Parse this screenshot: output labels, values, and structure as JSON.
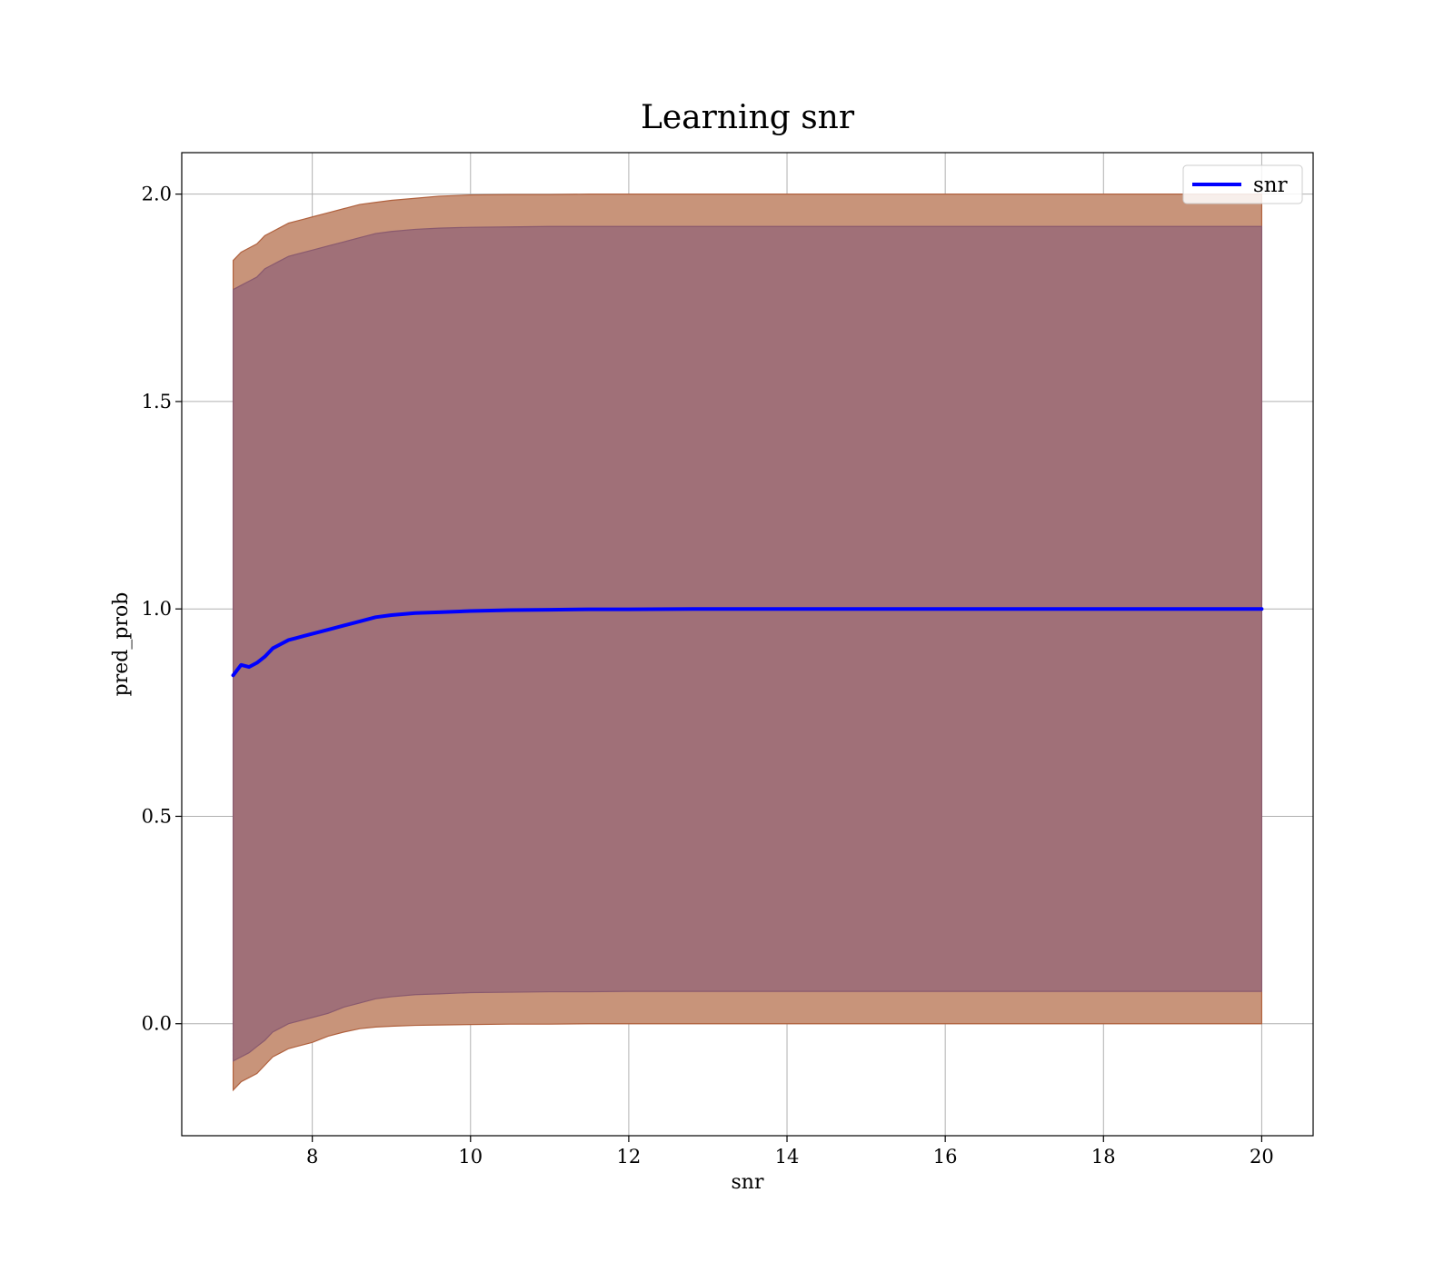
{
  "chart_data": {
    "type": "line",
    "title": "Learning snr",
    "xlabel": "snr",
    "ylabel": "pred_prob",
    "xlim": [
      6.35,
      20.65
    ],
    "ylim": [
      -0.27,
      2.1
    ],
    "xticks": [
      8,
      10,
      12,
      14,
      16,
      18,
      20
    ],
    "yticks": [
      0.0,
      0.5,
      1.0,
      1.5,
      2.0
    ],
    "xtick_labels": [
      "8",
      "10",
      "12",
      "14",
      "16",
      "18",
      "20"
    ],
    "ytick_labels": [
      "0.0",
      "0.5",
      "1.0",
      "1.5",
      "2.0"
    ],
    "grid": true,
    "legend": {
      "position": "top-right",
      "entries": [
        "snr"
      ]
    },
    "colors": {
      "line": "#0000ff",
      "outer_band": "#c8947a",
      "outer_band_edge": "#b0613e",
      "inner_band": "#a07078",
      "inner_band_edge": "#8a5a6e",
      "grid": "#b0b0b0"
    },
    "series": [
      {
        "name": "snr",
        "x": [
          7.0,
          7.1,
          7.2,
          7.3,
          7.4,
          7.5,
          7.6,
          7.7,
          7.8,
          7.9,
          8.0,
          8.2,
          8.4,
          8.6,
          8.8,
          9.0,
          9.3,
          9.6,
          10.0,
          10.5,
          11.0,
          11.5,
          12.0,
          13.0,
          14.0,
          16.0,
          18.0,
          20.0
        ],
        "y": [
          0.84,
          0.865,
          0.86,
          0.87,
          0.885,
          0.905,
          0.915,
          0.925,
          0.93,
          0.935,
          0.94,
          0.95,
          0.96,
          0.97,
          0.98,
          0.985,
          0.99,
          0.992,
          0.995,
          0.997,
          0.998,
          0.999,
          0.999,
          1.0,
          1.0,
          1.0,
          1.0,
          1.0
        ]
      }
    ],
    "bands": [
      {
        "x": [
          7.0,
          7.1,
          7.2,
          7.3,
          7.4,
          7.5,
          7.6,
          7.7,
          7.8,
          7.9,
          8.0,
          8.2,
          8.4,
          8.6,
          8.8,
          9.0,
          9.3,
          9.6,
          10.0,
          10.5,
          11.0,
          11.5,
          12.0,
          13.0,
          14.0,
          16.0,
          18.0,
          20.0
        ],
        "lower": [
          -0.16,
          -0.14,
          -0.13,
          -0.12,
          -0.1,
          -0.08,
          -0.07,
          -0.06,
          -0.055,
          -0.05,
          -0.045,
          -0.03,
          -0.02,
          -0.012,
          -0.008,
          -0.006,
          -0.004,
          -0.003,
          -0.002,
          -0.001,
          -0.001,
          0.0,
          0.0,
          0.0,
          0.0,
          0.0,
          0.0,
          0.0
        ],
        "upper": [
          1.84,
          1.86,
          1.87,
          1.88,
          1.9,
          1.91,
          1.92,
          1.93,
          1.935,
          1.94,
          1.945,
          1.955,
          1.965,
          1.975,
          1.98,
          1.985,
          1.99,
          1.995,
          1.998,
          1.999,
          1.999,
          2.0,
          2.0,
          2.0,
          2.0,
          2.0,
          2.0,
          2.0
        ]
      },
      {
        "x": [
          7.0,
          7.1,
          7.2,
          7.3,
          7.4,
          7.5,
          7.6,
          7.7,
          7.8,
          7.9,
          8.0,
          8.2,
          8.4,
          8.6,
          8.8,
          9.0,
          9.3,
          9.6,
          10.0,
          10.5,
          11.0,
          11.5,
          12.0,
          13.0,
          14.0,
          16.0,
          18.0,
          20.0
        ],
        "lower": [
          -0.09,
          -0.08,
          -0.07,
          -0.055,
          -0.04,
          -0.02,
          -0.01,
          0.0,
          0.005,
          0.01,
          0.015,
          0.025,
          0.04,
          0.05,
          0.06,
          0.065,
          0.07,
          0.072,
          0.075,
          0.076,
          0.077,
          0.077,
          0.078,
          0.078,
          0.078,
          0.078,
          0.078,
          0.078
        ],
        "upper": [
          1.77,
          1.78,
          1.79,
          1.8,
          1.82,
          1.83,
          1.84,
          1.85,
          1.855,
          1.86,
          1.865,
          1.875,
          1.885,
          1.895,
          1.905,
          1.91,
          1.915,
          1.918,
          1.92,
          1.921,
          1.922,
          1.922,
          1.922,
          1.922,
          1.922,
          1.922,
          1.922,
          1.922
        ]
      }
    ]
  }
}
